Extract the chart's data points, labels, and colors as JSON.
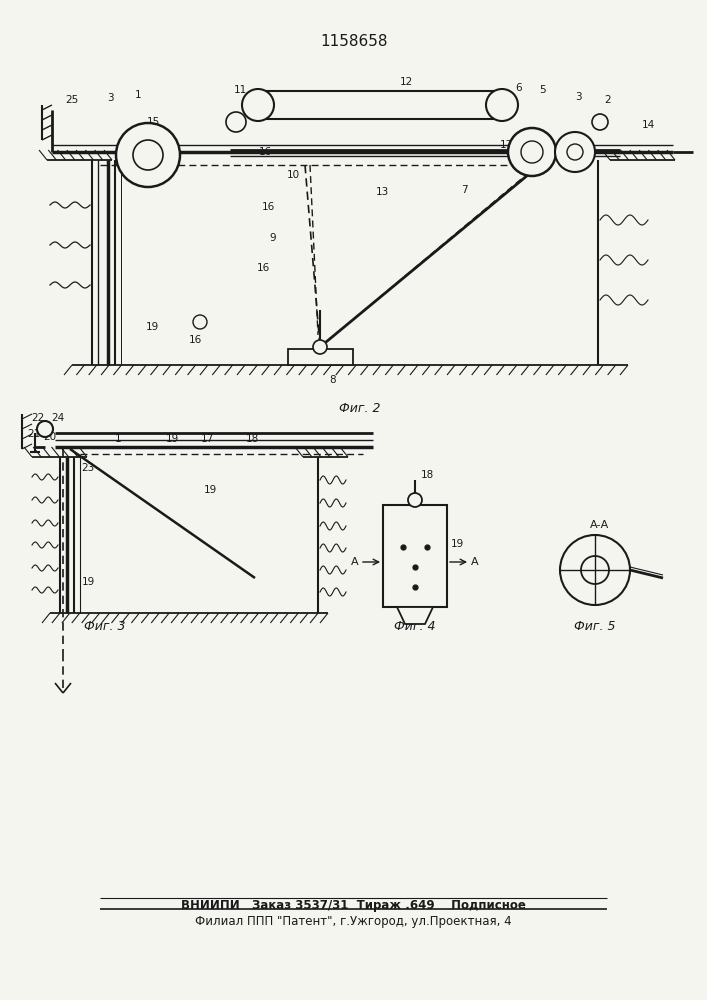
{
  "title": "1158658",
  "footer_line1": "ВНИИПИ   Заказ 3537/31  Тираж .649    Подписное",
  "footer_line2": "Филиал ППП \"Патент\", г.Ужгород, ул.Проектная, 4",
  "bg_color": "#f5f5f0",
  "fig2_caption": "Фиг. 2",
  "fig3_caption": "Фиг. 3",
  "fig4_caption": "Фиг. 4",
  "fig5_caption": "Фиг. 5"
}
